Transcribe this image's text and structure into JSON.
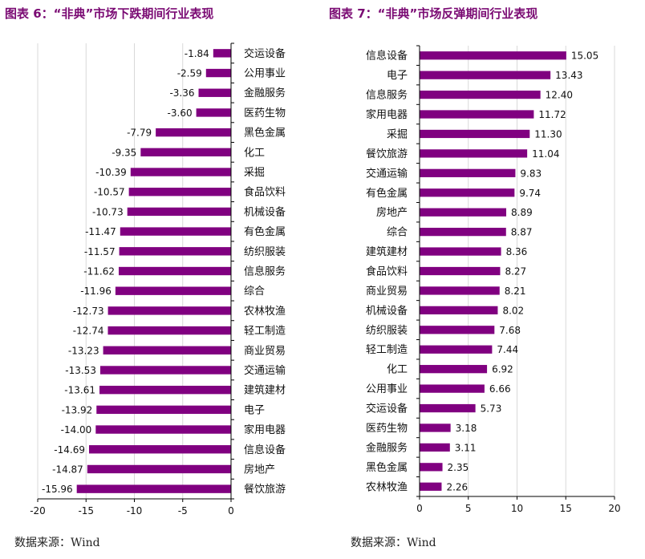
{
  "left": {
    "title": "图表 6：“非典”市场下跌期间行业表现",
    "source": "数据来源：Wind",
    "chart_data": {
      "type": "bar",
      "orientation": "horizontal",
      "categories": [
        "交运设备",
        "公用事业",
        "金融服务",
        "医药生物",
        "黑色金属",
        "化工",
        "采掘",
        "食品饮料",
        "机械设备",
        "有色金属",
        "纺织服装",
        "信息服务",
        "综合",
        "农林牧渔",
        "轻工制造",
        "商业贸易",
        "交通运输",
        "建筑建材",
        "电子",
        "家用电器",
        "信息设备",
        "房地产",
        "餐饮旅游"
      ],
      "values": [
        -1.84,
        -2.59,
        -3.36,
        -3.6,
        -7.79,
        -9.35,
        -10.39,
        -10.57,
        -10.73,
        -11.47,
        -11.57,
        -11.62,
        -11.96,
        -12.73,
        -12.74,
        -13.23,
        -13.53,
        -13.61,
        -13.92,
        -14.0,
        -14.69,
        -14.87,
        -15.96
      ],
      "value_labels": [
        "-1.84",
        "-2.59",
        "-3.36",
        "-3.60",
        "-7.79",
        "-9.35",
        "-10.39",
        "-10.57",
        "-10.73",
        "-11.47",
        "-11.57",
        "-11.62",
        "-11.96",
        "-12.73",
        "-12.74",
        "-13.23",
        "-13.53",
        "-13.61",
        "-13.92",
        "-14.00",
        "-14.69",
        "-14.87",
        "-15.96"
      ],
      "xlim": [
        -20,
        0
      ],
      "xticks": [
        "-20",
        "-15",
        "-10",
        "-5",
        "0"
      ],
      "grid": true,
      "color": "#800080"
    }
  },
  "right": {
    "title": "图表 7：“非典”市场反弹期间行业表现",
    "source": "数据来源：Wind",
    "chart_data": {
      "type": "bar",
      "orientation": "horizontal",
      "categories": [
        "信息设备",
        "电子",
        "信息服务",
        "家用电器",
        "采掘",
        "餐饮旅游",
        "交通运输",
        "有色金属",
        "房地产",
        "综合",
        "建筑建材",
        "食品饮料",
        "商业贸易",
        "机械设备",
        "纺织服装",
        "轻工制造",
        "化工",
        "公用事业",
        "交运设备",
        "医药生物",
        "金融服务",
        "黑色金属",
        "农林牧渔"
      ],
      "values": [
        15.05,
        13.43,
        12.4,
        11.72,
        11.3,
        11.04,
        9.83,
        9.74,
        8.89,
        8.87,
        8.36,
        8.27,
        8.21,
        8.02,
        7.68,
        7.44,
        6.92,
        6.66,
        5.73,
        3.18,
        3.11,
        2.35,
        2.26
      ],
      "value_labels": [
        "15.05",
        "13.43",
        "12.40",
        "11.72",
        "11.30",
        "11.04",
        "9.83",
        "9.74",
        "8.89",
        "8.87",
        "8.36",
        "8.27",
        "8.21",
        "8.02",
        "7.68",
        "7.44",
        "6.92",
        "6.66",
        "5.73",
        "3.18",
        "3.11",
        "2.35",
        "2.26"
      ],
      "xlim": [
        0,
        20
      ],
      "xticks": [
        "0",
        "5",
        "10",
        "15",
        "20"
      ],
      "grid": true,
      "color": "#800080"
    }
  }
}
